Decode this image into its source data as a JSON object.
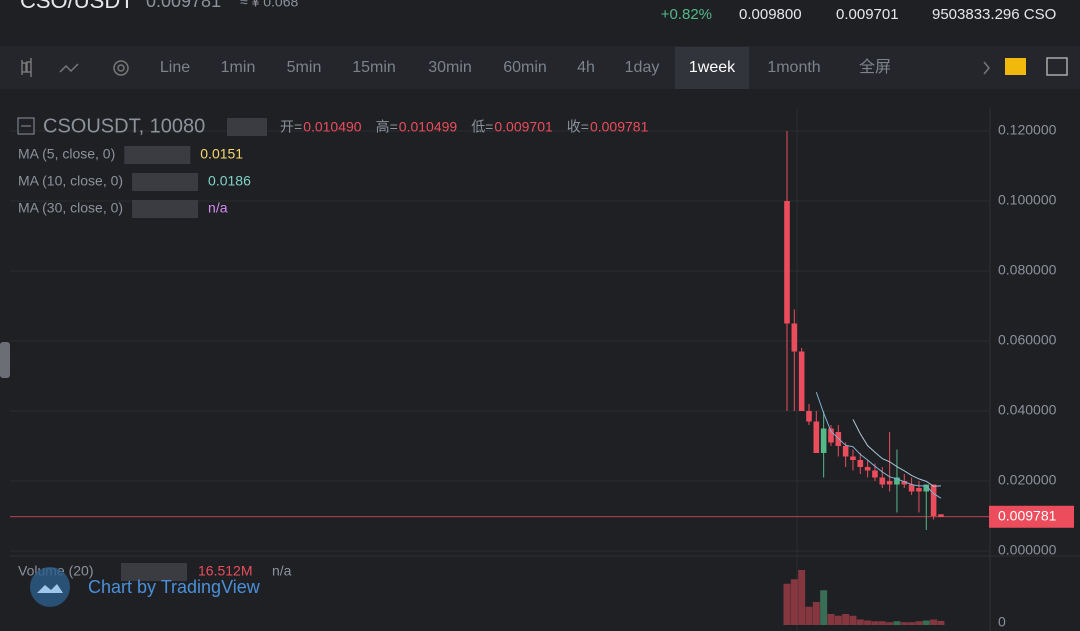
{
  "header": {
    "pair": "CSO/USDT",
    "price": "0.009781",
    "cny": "≈ ¥ 0.068",
    "change": "+0.82%",
    "high": "0.009800",
    "low": "0.009701",
    "volume": "9503833.296 CSO"
  },
  "toolbar": {
    "items": [
      "Line",
      "1min",
      "5min",
      "15min",
      "30min",
      "60min",
      "4h",
      "1day",
      "1week",
      "1month",
      "全屏"
    ],
    "active": "1week"
  },
  "legend": {
    "symbol": "CSOUSDT, 10080",
    "open_label": "开=",
    "open": "0.010490",
    "high_label": "高=",
    "high": "0.010499",
    "low_label": "低=",
    "low": "0.009701",
    "close_label": "收=",
    "close": "0.009781",
    "ma": [
      {
        "name": "MA (5, close, 0)",
        "value": "0.0151",
        "color": "#f5d76e"
      },
      {
        "name": "MA (10, close, 0)",
        "value": "0.0186",
        "color": "#7fd3c8"
      },
      {
        "name": "MA (30, close, 0)",
        "value": "n/a",
        "color": "#d58cf0"
      }
    ],
    "volume_name": "Volume (20)",
    "volume_value": "16.512M",
    "volume_ma": "n/a",
    "watermark": "Chart by TradingView"
  },
  "chart_data": {
    "type": "candlestick",
    "open": [
      0.1,
      0.065,
      0.057,
      0.04,
      0.037,
      0.028,
      0.035,
      0.034,
      0.03,
      0.027,
      0.026,
      0.024,
      0.023,
      0.021,
      0.02,
      0.019,
      0.02,
      0.019,
      0.018,
      0.017,
      0.019,
      0.01049
    ],
    "high": [
      0.12,
      0.069,
      0.058,
      0.042,
      0.04,
      0.04,
      0.036,
      0.036,
      0.031,
      0.029,
      0.028,
      0.026,
      0.025,
      0.024,
      0.034,
      0.029,
      0.022,
      0.021,
      0.02,
      0.019,
      0.019,
      0.010499
    ],
    "low": [
      0.04,
      0.04,
      0.04,
      0.036,
      0.028,
      0.021,
      0.03,
      0.027,
      0.024,
      0.023,
      0.022,
      0.021,
      0.02,
      0.018,
      0.017,
      0.011,
      0.018,
      0.016,
      0.011,
      0.006,
      0.009,
      0.009701
    ],
    "close": [
      0.065,
      0.057,
      0.04,
      0.037,
      0.028,
      0.035,
      0.031,
      0.03,
      0.027,
      0.026,
      0.024,
      0.023,
      0.021,
      0.019,
      0.019,
      0.021,
      0.019,
      0.017,
      0.017,
      0.019,
      0.01,
      0.009781
    ],
    "up_color": "#53b987",
    "down_color": "#eb4d5c",
    "series": [
      {
        "name": "MA (5, close, 0)",
        "color": "#7fb3d5",
        "values": [
          null,
          null,
          null,
          null,
          0.0454,
          0.0394,
          0.0342,
          0.0322,
          0.0302,
          0.0298,
          0.0276,
          0.026,
          0.0242,
          0.0226,
          0.0212,
          0.0206,
          0.0198,
          0.019,
          0.0186,
          0.0186,
          0.0164,
          0.0151
        ]
      },
      {
        "name": "MA (10, close, 0)",
        "color": "#a9c6d8",
        "values": [
          null,
          null,
          null,
          null,
          null,
          null,
          null,
          null,
          null,
          0.0376,
          0.0335,
          0.0301,
          0.0282,
          0.0264,
          0.0255,
          0.0241,
          0.0229,
          0.0216,
          0.0206,
          0.0199,
          0.0185,
          0.0186
        ]
      }
    ],
    "ylim": [
      -0.00114,
      0.12657
    ],
    "yticks": [
      {
        "value": 0,
        "label": "0.000000"
      },
      {
        "value": 0.02,
        "label": "0.020000"
      },
      {
        "value": 0.04,
        "label": "0.040000"
      },
      {
        "value": 0.06,
        "label": "0.060000"
      },
      {
        "value": 0.08,
        "label": "0.080000"
      },
      {
        "value": 0.1,
        "label": "0.100000"
      },
      {
        "value": 0.12,
        "label": "0.120000"
      }
    ],
    "last_price": {
      "value": 0.009781,
      "label": "0.009781"
    },
    "volume": {
      "values": [
        165000000,
        183000000,
        220000000,
        73000000,
        92000000,
        139000000,
        44000000,
        37000000,
        44000000,
        37000000,
        22000000,
        18000000,
        15000000,
        15000000,
        11000000,
        15000000,
        11000000,
        11000000,
        15000000,
        18000000,
        22000000,
        16512000
      ],
      "ylim": [
        0,
        240000000
      ],
      "yticks": [
        0
      ]
    },
    "grid": true
  }
}
